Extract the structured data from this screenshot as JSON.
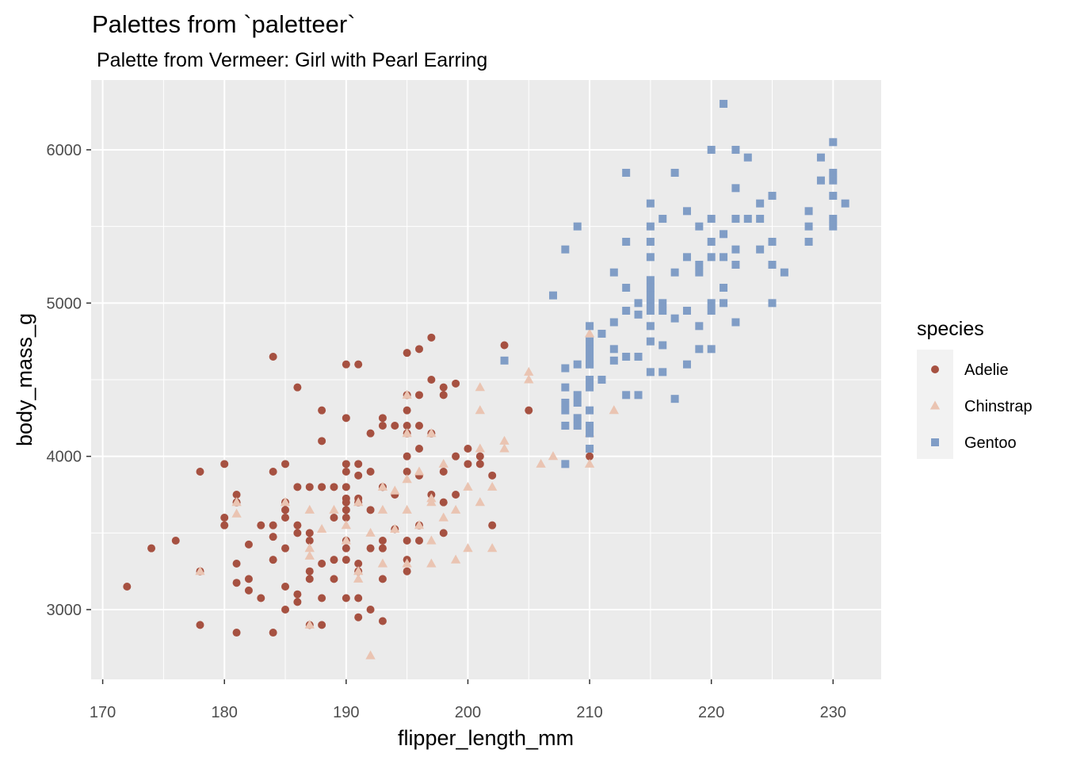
{
  "chart_data": {
    "type": "scatter",
    "title": "Palettes from `paletteer`",
    "subtitle": "Palette from Vermeer: Girl with Pearl Earring",
    "xlabel": "flipper_length_mm",
    "ylabel": "body_mass_g",
    "xlim": [
      169.05,
      233.95
    ],
    "ylim": [
      2545,
      6455
    ],
    "x_ticks": [
      170,
      180,
      190,
      200,
      210,
      220,
      230
    ],
    "y_ticks": [
      3000,
      4000,
      5000,
      6000
    ],
    "grid": true,
    "legend": {
      "title": "species",
      "position": "right"
    },
    "series": [
      {
        "name": "Adelie",
        "color": "#A65141",
        "shape": "circle",
        "points": [
          [
            172,
            3150
          ],
          [
            174,
            3400
          ],
          [
            176,
            3450
          ],
          [
            178,
            3250
          ],
          [
            178,
            3900
          ],
          [
            178,
            2900
          ],
          [
            180,
            3950
          ],
          [
            180,
            3600
          ],
          [
            180,
            3550
          ],
          [
            181,
            3750
          ],
          [
            181,
            3700
          ],
          [
            181,
            3300
          ],
          [
            181,
            3175
          ],
          [
            181,
            2850
          ],
          [
            182,
            3200
          ],
          [
            182,
            3425
          ],
          [
            182,
            3125
          ],
          [
            183,
            3550
          ],
          [
            183,
            3075
          ],
          [
            184,
            4650
          ],
          [
            184,
            3900
          ],
          [
            184,
            3550
          ],
          [
            184,
            3475
          ],
          [
            184,
            3325
          ],
          [
            184,
            2850
          ],
          [
            185,
            3950
          ],
          [
            185,
            3700
          ],
          [
            185,
            3650
          ],
          [
            185,
            3600
          ],
          [
            185,
            3400
          ],
          [
            185,
            3150
          ],
          [
            185,
            3000
          ],
          [
            186,
            4450
          ],
          [
            186,
            3800
          ],
          [
            186,
            3550
          ],
          [
            186,
            3500
          ],
          [
            186,
            3100
          ],
          [
            186,
            3050
          ],
          [
            187,
            3800
          ],
          [
            187,
            3500
          ],
          [
            187,
            3450
          ],
          [
            187,
            3200
          ],
          [
            187,
            3250
          ],
          [
            187,
            2900
          ],
          [
            188,
            4300
          ],
          [
            188,
            4100
          ],
          [
            188,
            3800
          ],
          [
            188,
            3300
          ],
          [
            188,
            3075
          ],
          [
            188,
            2900
          ],
          [
            189,
            3800
          ],
          [
            189,
            3600
          ],
          [
            189,
            3325
          ],
          [
            189,
            3200
          ],
          [
            190,
            4600
          ],
          [
            190,
            4250
          ],
          [
            190,
            3950
          ],
          [
            190,
            3900
          ],
          [
            190,
            3800
          ],
          [
            190,
            3725
          ],
          [
            190,
            3700
          ],
          [
            190,
            3650
          ],
          [
            190,
            3600
          ],
          [
            190,
            3450
          ],
          [
            190,
            3400
          ],
          [
            190,
            3325
          ],
          [
            190,
            3075
          ],
          [
            191,
            4600
          ],
          [
            191,
            3950
          ],
          [
            191,
            3875
          ],
          [
            191,
            3725
          ],
          [
            191,
            3700
          ],
          [
            191,
            3300
          ],
          [
            191,
            3250
          ],
          [
            191,
            3075
          ],
          [
            191,
            2950
          ],
          [
            192,
            4150
          ],
          [
            192,
            3900
          ],
          [
            192,
            3650
          ],
          [
            192,
            3400
          ],
          [
            192,
            3000
          ],
          [
            193,
            4250
          ],
          [
            193,
            4200
          ],
          [
            193,
            3800
          ],
          [
            193,
            3450
          ],
          [
            193,
            3400
          ],
          [
            193,
            3200
          ],
          [
            193,
            2925
          ],
          [
            194,
            4200
          ],
          [
            194,
            3750
          ],
          [
            194,
            3525
          ],
          [
            195,
            4675
          ],
          [
            195,
            4400
          ],
          [
            195,
            4300
          ],
          [
            195,
            4200
          ],
          [
            195,
            4150
          ],
          [
            195,
            4000
          ],
          [
            195,
            3900
          ],
          [
            195,
            3450
          ],
          [
            195,
            3325
          ],
          [
            195,
            3250
          ],
          [
            196,
            4700
          ],
          [
            196,
            4400
          ],
          [
            196,
            4200
          ],
          [
            196,
            4050
          ],
          [
            196,
            3875
          ],
          [
            196,
            3550
          ],
          [
            196,
            3450
          ],
          [
            197,
            4775
          ],
          [
            197,
            4500
          ],
          [
            197,
            4150
          ],
          [
            197,
            3750
          ],
          [
            198,
            4450
          ],
          [
            198,
            4400
          ],
          [
            198,
            3900
          ],
          [
            198,
            3700
          ],
          [
            198,
            3500
          ],
          [
            199,
            4475
          ],
          [
            199,
            4000
          ],
          [
            199,
            3750
          ],
          [
            200,
            4050
          ],
          [
            200,
            3950
          ],
          [
            201,
            4000
          ],
          [
            201,
            3950
          ],
          [
            202,
            3875
          ],
          [
            202,
            3550
          ],
          [
            203,
            4725
          ],
          [
            205,
            4300
          ],
          [
            210,
            4000
          ]
        ]
      },
      {
        "name": "Chinstrap",
        "color": "#EAC4B2",
        "shape": "triangle",
        "points": [
          [
            178,
            3250
          ],
          [
            181,
            3700
          ],
          [
            181,
            3625
          ],
          [
            185,
            3700
          ],
          [
            187,
            3650
          ],
          [
            187,
            3400
          ],
          [
            187,
            3350
          ],
          [
            187,
            2900
          ],
          [
            188,
            3525
          ],
          [
            189,
            3650
          ],
          [
            190,
            3550
          ],
          [
            190,
            3450
          ],
          [
            191,
            3700
          ],
          [
            191,
            3250
          ],
          [
            191,
            3200
          ],
          [
            192,
            3500
          ],
          [
            192,
            2700
          ],
          [
            193,
            3800
          ],
          [
            193,
            3650
          ],
          [
            193,
            3300
          ],
          [
            194,
            3775
          ],
          [
            194,
            3525
          ],
          [
            195,
            4400
          ],
          [
            195,
            4150
          ],
          [
            195,
            3850
          ],
          [
            195,
            3650
          ],
          [
            195,
            3300
          ],
          [
            196,
            3900
          ],
          [
            196,
            3550
          ],
          [
            197,
            4150
          ],
          [
            197,
            3725
          ],
          [
            197,
            3700
          ],
          [
            197,
            3450
          ],
          [
            197,
            3300
          ],
          [
            198,
            3950
          ],
          [
            198,
            3600
          ],
          [
            199,
            3650
          ],
          [
            199,
            3325
          ],
          [
            200,
            3800
          ],
          [
            200,
            3400
          ],
          [
            201,
            4450
          ],
          [
            201,
            4300
          ],
          [
            201,
            4050
          ],
          [
            201,
            3700
          ],
          [
            202,
            3800
          ],
          [
            202,
            3400
          ],
          [
            203,
            4100
          ],
          [
            203,
            4050
          ],
          [
            205,
            4550
          ],
          [
            205,
            4500
          ],
          [
            206,
            3950
          ],
          [
            207,
            4000
          ],
          [
            210,
            4800
          ],
          [
            210,
            4150
          ],
          [
            210,
            3950
          ],
          [
            212,
            4300
          ]
        ]
      },
      {
        "name": "Gentoo",
        "color": "#809DC6",
        "shape": "square",
        "points": [
          [
            203,
            4625
          ],
          [
            207,
            5050
          ],
          [
            208,
            4575
          ],
          [
            208,
            4450
          ],
          [
            208,
            4350
          ],
          [
            208,
            4300
          ],
          [
            208,
            4200
          ],
          [
            208,
            3950
          ],
          [
            208,
            5350
          ],
          [
            209,
            5500
          ],
          [
            209,
            4600
          ],
          [
            209,
            4400
          ],
          [
            209,
            4350
          ],
          [
            209,
            4250
          ],
          [
            209,
            4200
          ],
          [
            210,
            4850
          ],
          [
            210,
            4750
          ],
          [
            210,
            4700
          ],
          [
            210,
            4650
          ],
          [
            210,
            4600
          ],
          [
            210,
            4500
          ],
          [
            210,
            4450
          ],
          [
            210,
            4300
          ],
          [
            210,
            4200
          ],
          [
            210,
            4150
          ],
          [
            210,
            4050
          ],
          [
            210,
            4600
          ],
          [
            211,
            4800
          ],
          [
            211,
            4500
          ],
          [
            212,
            4875
          ],
          [
            212,
            4700
          ],
          [
            212,
            4625
          ],
          [
            212,
            5200
          ],
          [
            213,
            5400
          ],
          [
            213,
            5100
          ],
          [
            213,
            4950
          ],
          [
            213,
            4650
          ],
          [
            213,
            4400
          ],
          [
            213,
            5850
          ],
          [
            214,
            5000
          ],
          [
            214,
            4925
          ],
          [
            214,
            4650
          ],
          [
            214,
            4400
          ],
          [
            215,
            5650
          ],
          [
            215,
            5500
          ],
          [
            215,
            5400
          ],
          [
            215,
            5300
          ],
          [
            215,
            5150
          ],
          [
            215,
            5100
          ],
          [
            215,
            5050
          ],
          [
            215,
            5000
          ],
          [
            215,
            4950
          ],
          [
            215,
            4850
          ],
          [
            215,
            4750
          ],
          [
            215,
            4550
          ],
          [
            216,
            5550
          ],
          [
            216,
            5000
          ],
          [
            216,
            4950
          ],
          [
            216,
            4725
          ],
          [
            216,
            4550
          ],
          [
            217,
            5850
          ],
          [
            217,
            5200
          ],
          [
            217,
            4900
          ],
          [
            217,
            4375
          ],
          [
            218,
            5600
          ],
          [
            218,
            5300
          ],
          [
            218,
            4950
          ],
          [
            218,
            4600
          ],
          [
            219,
            5500
          ],
          [
            219,
            5250
          ],
          [
            219,
            5200
          ],
          [
            219,
            4850
          ],
          [
            219,
            4700
          ],
          [
            220,
            6000
          ],
          [
            220,
            5550
          ],
          [
            220,
            5400
          ],
          [
            220,
            5300
          ],
          [
            220,
            5000
          ],
          [
            220,
            4950
          ],
          [
            220,
            4700
          ],
          [
            221,
            6300
          ],
          [
            221,
            5450
          ],
          [
            221,
            5300
          ],
          [
            221,
            5100
          ],
          [
            221,
            5000
          ],
          [
            222,
            6000
          ],
          [
            222,
            5750
          ],
          [
            222,
            5550
          ],
          [
            222,
            5350
          ],
          [
            222,
            5250
          ],
          [
            222,
            4875
          ],
          [
            223,
            5950
          ],
          [
            223,
            5550
          ],
          [
            224,
            5650
          ],
          [
            224,
            5550
          ],
          [
            224,
            5350
          ],
          [
            225,
            5700
          ],
          [
            225,
            5400
          ],
          [
            225,
            5250
          ],
          [
            225,
            5000
          ],
          [
            226,
            5200
          ],
          [
            228,
            5600
          ],
          [
            228,
            5500
          ],
          [
            228,
            5400
          ],
          [
            229,
            5950
          ],
          [
            229,
            5800
          ],
          [
            230,
            6050
          ],
          [
            230,
            5850
          ],
          [
            230,
            5800
          ],
          [
            230,
            5700
          ],
          [
            230,
            5550
          ],
          [
            230,
            5500
          ],
          [
            231,
            5650
          ]
        ]
      }
    ]
  }
}
